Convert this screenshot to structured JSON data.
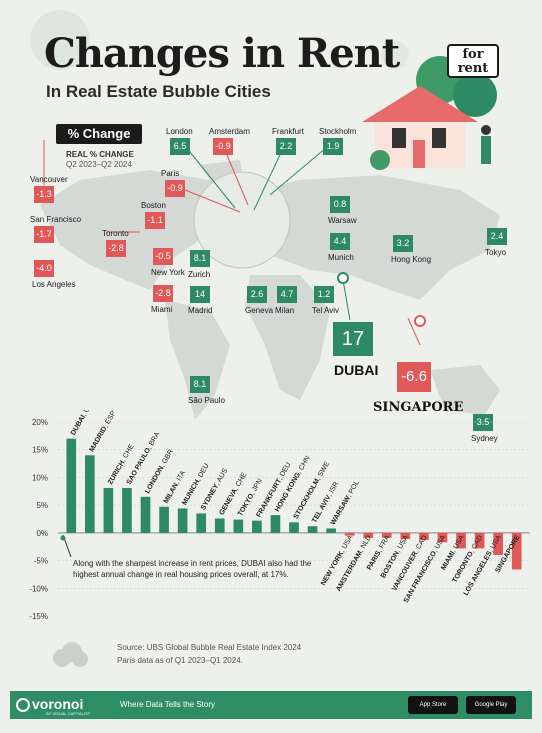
{
  "header": {
    "title": "Changes in Rent",
    "subtitle": "In Real Estate Bubble Cities",
    "legend_label": "% Change",
    "legend_line1": "REAL % CHANGE",
    "legend_line2": "Q2 2023–Q2 2024",
    "badge": "for rent"
  },
  "map_cities": [
    {
      "name": "London",
      "value": "6.5",
      "dir": "pos"
    },
    {
      "name": "Amsterdam",
      "value": "-0.9",
      "dir": "neg"
    },
    {
      "name": "Frankfurt",
      "value": "2.2",
      "dir": "pos"
    },
    {
      "name": "Stockholm",
      "value": "1.9",
      "dir": "pos"
    },
    {
      "name": "Paris",
      "value": "-0.9",
      "dir": "neg"
    },
    {
      "name": "Vancouver",
      "value": "-1.3",
      "dir": "neg"
    },
    {
      "name": "San Francisco",
      "value": "-1.7",
      "dir": "neg"
    },
    {
      "name": "Los Angeles",
      "value": "-4.0",
      "dir": "neg"
    },
    {
      "name": "Toronto",
      "value": "-2.8",
      "dir": "neg"
    },
    {
      "name": "Boston",
      "value": "-1.1",
      "dir": "neg"
    },
    {
      "name": "New York",
      "value": "-0.5",
      "dir": "neg"
    },
    {
      "name": "Miami",
      "value": "-2.8",
      "dir": "neg"
    },
    {
      "name": "Zurich",
      "value": "8.1",
      "dir": "pos"
    },
    {
      "name": "Madrid",
      "value": "14",
      "dir": "pos"
    },
    {
      "name": "Geneva",
      "value": "2.6",
      "dir": "pos"
    },
    {
      "name": "Milan",
      "value": "4.7",
      "dir": "pos"
    },
    {
      "name": "Tel Aviv",
      "value": "1.2",
      "dir": "pos"
    },
    {
      "name": "Munich",
      "value": "4.4",
      "dir": "pos"
    },
    {
      "name": "Warsaw",
      "value": "0.8",
      "dir": "pos"
    },
    {
      "name": "Hong Kong",
      "value": "3.2",
      "dir": "pos"
    },
    {
      "name": "Tokyo",
      "value": "2.4",
      "dir": "pos"
    },
    {
      "name": "Sydney",
      "value": "3.5",
      "dir": "pos"
    },
    {
      "name": "São Paulo",
      "value": "8.1",
      "dir": "pos"
    },
    {
      "name": "DUBAI",
      "value": "17",
      "dir": "pos"
    },
    {
      "name": "SINGAPORE",
      "value": "-6.6",
      "dir": "neg"
    }
  ],
  "chart_data": {
    "type": "bar",
    "categories": [
      "DUBAI, UAE",
      "MADRID, ESP",
      "ZURICH, CHE",
      "SAO PAULO, BRA",
      "LONDON, GBR",
      "MILAN, ITA",
      "MUNICH, DEU",
      "SYDNEY, AUS",
      "GENEVA, CHE",
      "TOKYO, JPN",
      "FRANKFURT, DEU",
      "HONG KONG, CHN",
      "STOCKHOLM, SWE",
      "TEL AVIV, ISR",
      "WARSAW, POL",
      "NEW YORK, USA",
      "AMSTERDAM, NLD",
      "PARIS, FRA",
      "BOSTON, USA",
      "VANCOUVER, CAD",
      "SAN FRANCISCO, USA",
      "MIAMI, USA",
      "TORONTO, CAD",
      "LOS ANGELES, USA",
      "SINGAPORE"
    ],
    "values": [
      17,
      14,
      8.1,
      8.1,
      6.5,
      4.7,
      4.4,
      3.5,
      2.6,
      2.4,
      2.2,
      3.2,
      1.9,
      1.2,
      0.8,
      -0.5,
      -0.9,
      -0.9,
      -1.1,
      -1.3,
      -1.7,
      -2.8,
      -2.8,
      -4.0,
      -6.6
    ],
    "ylim": [
      -15,
      20
    ],
    "yticks": [
      "20%",
      "15%",
      "10%",
      "5%",
      "0%",
      "-5%",
      "-10%",
      "-15%"
    ],
    "ytick_values": [
      20,
      15,
      10,
      5,
      0,
      -5,
      -10,
      -15
    ],
    "pos_color": "#2d8a62",
    "neg_color": "#e05858"
  },
  "annotation": "Along with the sharpest increase in rent prices, DUBAI also had the highest annual change in real housing prices overall, at 17%.",
  "source": {
    "line1": "Source: UBS Global Bubble Real Estate Index 2024",
    "line2": "Paris data as of Q1 2023–Q1 2024."
  },
  "footer": {
    "brand": "voronoi",
    "brand_sub": "BY VISUAL CAPITALIST",
    "tagline": "Where Data Tells the Story",
    "app_store": "App Store",
    "google_play": "Google Play"
  }
}
